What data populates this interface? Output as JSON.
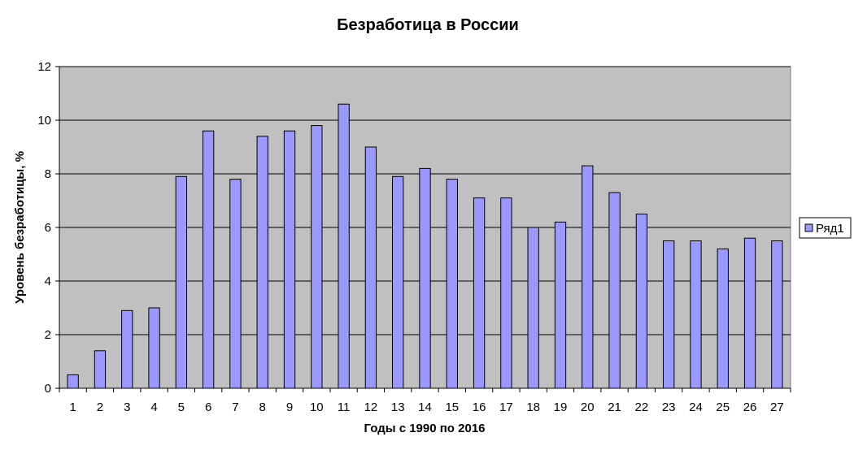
{
  "chart_data": {
    "type": "bar",
    "title": "Безработица в России",
    "xlabel": "Годы с 1990 по 2016",
    "ylabel": "Уровень безработицы, %",
    "categories": [
      "1",
      "2",
      "3",
      "4",
      "5",
      "6",
      "7",
      "8",
      "9",
      "10",
      "11",
      "12",
      "13",
      "14",
      "15",
      "16",
      "17",
      "18",
      "19",
      "20",
      "21",
      "22",
      "23",
      "24",
      "25",
      "26",
      "27"
    ],
    "series": [
      {
        "name": "Ряд1",
        "values": [
          0.5,
          1.4,
          2.9,
          3.0,
          7.9,
          9.6,
          7.8,
          9.4,
          9.6,
          9.8,
          10.6,
          9.0,
          7.9,
          8.2,
          7.8,
          7.1,
          7.1,
          6.0,
          6.2,
          8.3,
          7.3,
          6.5,
          5.5,
          5.5,
          5.2,
          5.6,
          5.5
        ]
      }
    ],
    "ylim": [
      0,
      12
    ],
    "yticks": [
      0,
      2,
      4,
      6,
      8,
      10,
      12
    ],
    "grid": true,
    "legend": "right",
    "colors": {
      "bar_fill": "#9999ff",
      "bar_stroke": "#000000",
      "plot_bg": "#c0c0c0",
      "grid": "#000000"
    }
  }
}
